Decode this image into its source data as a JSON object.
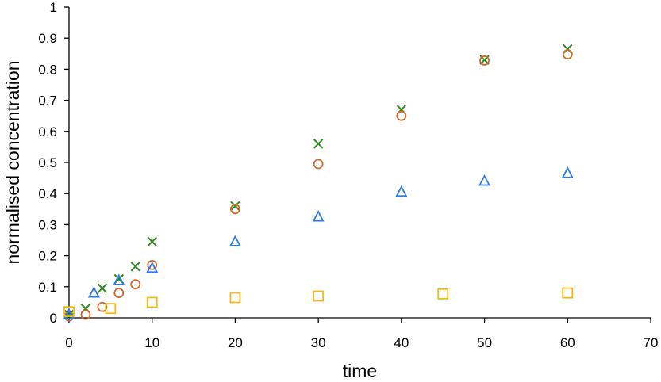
{
  "chart_data": {
    "type": "scatter",
    "title": "",
    "xlabel": "time",
    "ylabel": "normalised concentration",
    "xlim": [
      0,
      70
    ],
    "ylim": [
      0,
      1
    ],
    "x_ticks": [
      0,
      10,
      20,
      30,
      40,
      50,
      60,
      70
    ],
    "y_ticks": [
      0,
      0.1,
      0.2,
      0.3,
      0.4,
      0.5,
      0.6,
      0.7,
      0.8,
      0.9,
      1
    ],
    "y_tick_labels": [
      "0",
      "0.1",
      "0.2",
      "0.3",
      "0.4",
      "0.5",
      "0.6",
      "0.7",
      "0.8",
      "0.9",
      "1"
    ],
    "grid": false,
    "legend": "none",
    "series": [
      {
        "marker": "cross",
        "color": "#2e8b1e",
        "points": [
          [
            0,
            0.01
          ],
          [
            2,
            0.03
          ],
          [
            4,
            0.095
          ],
          [
            6,
            0.125
          ],
          [
            8,
            0.165
          ],
          [
            10,
            0.245
          ],
          [
            20,
            0.36
          ],
          [
            30,
            0.56
          ],
          [
            40,
            0.67
          ],
          [
            50,
            0.83
          ],
          [
            60,
            0.865
          ]
        ]
      },
      {
        "marker": "circle",
        "color": "#d0692c",
        "points": [
          [
            0,
            0.005
          ],
          [
            2,
            0.01
          ],
          [
            4,
            0.035
          ],
          [
            6,
            0.08
          ],
          [
            8,
            0.108
          ],
          [
            10,
            0.17
          ],
          [
            20,
            0.35
          ],
          [
            30,
            0.495
          ],
          [
            40,
            0.65
          ],
          [
            50,
            0.828
          ],
          [
            60,
            0.848
          ]
        ]
      },
      {
        "marker": "triangle",
        "color": "#2b7be0",
        "points": [
          [
            0,
            0.01
          ],
          [
            3,
            0.08
          ],
          [
            6,
            0.12
          ],
          [
            10,
            0.16
          ],
          [
            20,
            0.245
          ],
          [
            30,
            0.325
          ],
          [
            40,
            0.405
          ],
          [
            50,
            0.44
          ],
          [
            60,
            0.465
          ]
        ]
      },
      {
        "marker": "square",
        "color": "#f2b918",
        "points": [
          [
            0,
            0.02
          ],
          [
            5,
            0.03
          ],
          [
            10,
            0.05
          ],
          [
            20,
            0.065
          ],
          [
            30,
            0.07
          ],
          [
            45,
            0.077
          ],
          [
            60,
            0.08
          ]
        ]
      }
    ]
  }
}
